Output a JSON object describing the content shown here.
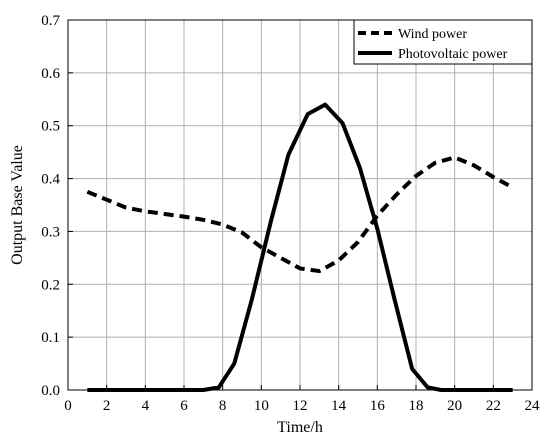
{
  "chart_data": {
    "type": "line",
    "xlabel": "Time/h",
    "ylabel": "Output Base Value",
    "xlim": [
      0,
      24
    ],
    "ylim": [
      0,
      0.7
    ],
    "xticks": [
      "0",
      "2",
      "4",
      "6",
      "8",
      "10",
      "12",
      "14",
      "16",
      "18",
      "20",
      "22",
      "24"
    ],
    "yticks": [
      "0.0",
      "0.1",
      "0.2",
      "0.3",
      "0.4",
      "0.5",
      "0.6",
      "0.7"
    ],
    "grid": true,
    "legend_position": "top-right",
    "series": [
      {
        "name": "Wind power",
        "style": "dashed",
        "color": "#000000",
        "x": [
          1,
          2,
          3,
          4,
          5,
          6,
          7,
          8,
          9,
          10,
          11,
          12,
          13,
          14,
          15,
          16,
          17,
          18,
          19,
          20,
          21,
          22,
          23
        ],
        "y": [
          0.375,
          0.36,
          0.345,
          0.338,
          0.333,
          0.328,
          0.322,
          0.313,
          0.298,
          0.27,
          0.25,
          0.23,
          0.225,
          0.245,
          0.28,
          0.33,
          0.37,
          0.405,
          0.43,
          0.44,
          0.425,
          0.403,
          0.383
        ]
      },
      {
        "name": "Photovoltaic power",
        "style": "solid",
        "color": "#000000",
        "x": [
          1,
          2,
          3,
          4,
          5,
          6,
          7,
          7.8,
          8.6,
          9.5,
          10.5,
          11.4,
          12.4,
          13.3,
          14.2,
          15.1,
          16,
          16.9,
          17.8,
          18.6,
          19.3,
          20,
          21,
          22,
          23
        ],
        "y": [
          0,
          0,
          0,
          0,
          0,
          0,
          0,
          0.005,
          0.05,
          0.17,
          0.32,
          0.445,
          0.522,
          0.54,
          0.505,
          0.42,
          0.305,
          0.17,
          0.04,
          0.005,
          0,
          0,
          0,
          0,
          0
        ]
      }
    ]
  }
}
